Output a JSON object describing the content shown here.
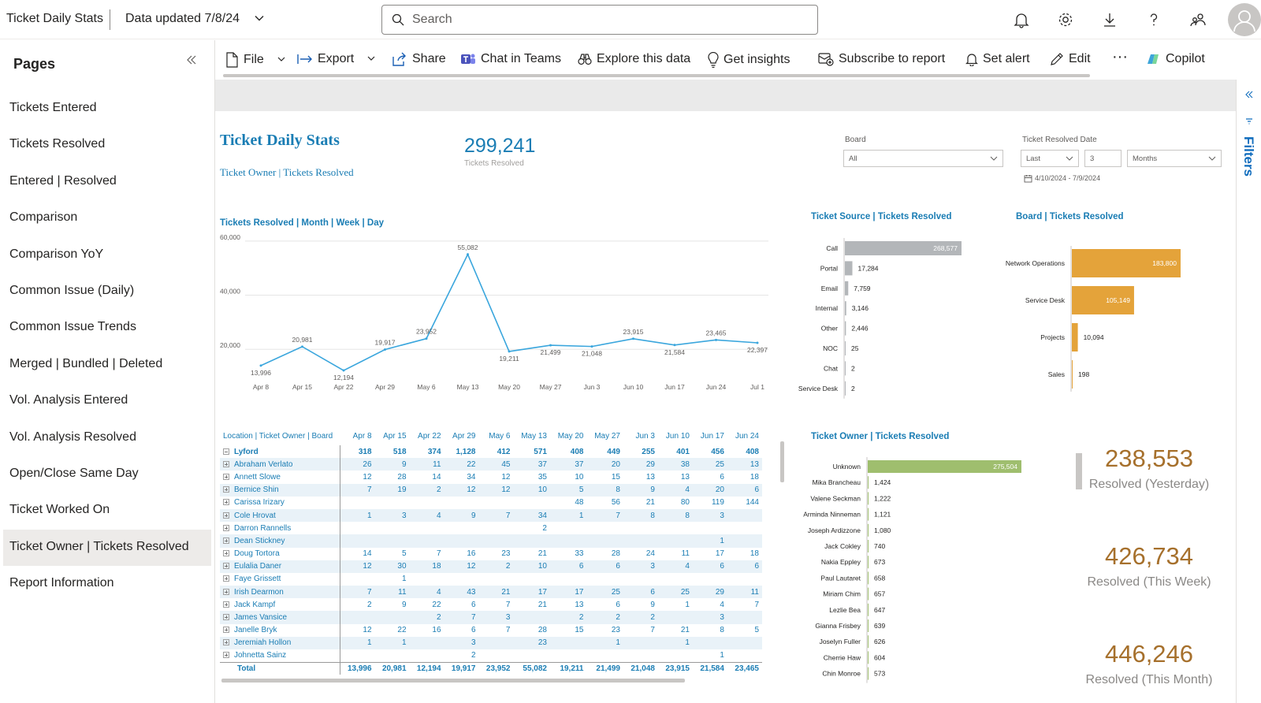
{
  "topbar": {
    "app_title": "Ticket Daily Stats",
    "data_updated": "Data updated 7/8/24",
    "search_placeholder": "Search"
  },
  "pages": {
    "heading": "Pages",
    "items": [
      "Tickets Entered",
      "Tickets Resolved",
      "Entered | Resolved",
      "Comparison",
      "Comparison YoY",
      "Common Issue (Daily)",
      "Common Issue Trends",
      "Merged | Bundled | Deleted",
      "Vol. Analysis Entered",
      "Vol. Analysis Resolved",
      "Open/Close Same Day",
      "Ticket Worked On",
      "Ticket Owner | Tickets Resolved",
      "Report Information"
    ],
    "active_index": 12
  },
  "toolbar": {
    "file": "File",
    "export": "Export",
    "share": "Share",
    "chat_teams": "Chat in Teams",
    "explore": "Explore this data",
    "insights": "Get insights",
    "subscribe": "Subscribe to report",
    "alert": "Set alert",
    "edit": "Edit",
    "more": "···",
    "copilot": "Copilot"
  },
  "filters_pane": {
    "label": "Filters"
  },
  "report": {
    "title": "Ticket Daily Stats",
    "subtitle": "Ticket Owner | Tickets Resolved",
    "total_value": "299,241",
    "total_label": "Tickets Resolved",
    "board_label": "Board",
    "board_value": "All",
    "date_label": "Ticket Resolved Date",
    "date_mode": "Last",
    "date_n": "3",
    "date_unit": "Months",
    "date_range": "4/10/2024 - 7/9/2024"
  },
  "chart_data": [
    {
      "type": "line",
      "title": "Tickets Resolved | Month | Week | Day",
      "x": [
        "Apr 8",
        "Apr 15",
        "Apr 22",
        "Apr 29",
        "May 6",
        "May 13",
        "May 20",
        "May 27",
        "Jun 3",
        "Jun 10",
        "Jun 17",
        "Jun 24",
        "Jul 1"
      ],
      "values": [
        13996,
        20981,
        12194,
        19917,
        23952,
        55082,
        19211,
        21499,
        21048,
        23915,
        21584,
        23465,
        22397
      ],
      "labels": [
        "13,996",
        "20,981",
        "12,194",
        "19,917",
        "23,952",
        "55,082",
        "19,211",
        "21,499",
        "21,048",
        "23,915",
        "21,584",
        "23,465",
        "22,397"
      ],
      "yticks": [
        "20,000",
        "40,000",
        "60,000"
      ],
      "ylim": [
        9000,
        62000
      ],
      "color": "#3aa6dd"
    },
    {
      "type": "bar",
      "title": "Ticket Source | Tickets Resolved",
      "categories": [
        "Call",
        "Portal",
        "Email",
        "Internal",
        "Other",
        "NOC",
        "Chat",
        "Service Desk"
      ],
      "values": [
        268577,
        17284,
        7759,
        3146,
        2446,
        25,
        2,
        2
      ],
      "labels": [
        "268,577",
        "17,284",
        "7,759",
        "3,146",
        "2,446",
        "25",
        "2",
        "2"
      ],
      "color": "#b3b6b9"
    },
    {
      "type": "bar",
      "title": "Board | Tickets Resolved",
      "categories": [
        "Network Operations",
        "Service Desk",
        "Projects",
        "Sales"
      ],
      "values": [
        183800,
        105149,
        10094,
        198
      ],
      "labels": [
        "183,800",
        "105,149",
        "10,094",
        "198"
      ],
      "color": "#e4a33a"
    },
    {
      "type": "bar",
      "title": "Ticket Owner | Tickets Resolved",
      "categories": [
        "Unknown",
        "Mika Brancheau",
        "Valene Seckman",
        "Arminda Ninneman",
        "Joseph Ardizzone",
        "Jack Cokley",
        "Nakia Eppley",
        "Paul Lautaret",
        "Miriam Chim",
        "Lezlie Bea",
        "Gianna Frisbey",
        "Joselyn Fuller",
        "Cherrie Haw",
        "Chin Monroe"
      ],
      "values": [
        275504,
        1424,
        1222,
        1121,
        1080,
        740,
        673,
        658,
        657,
        647,
        639,
        626,
        604,
        573
      ],
      "labels": [
        "275,504",
        "1,424",
        "1,222",
        "1,121",
        "1,080",
        "740",
        "673",
        "658",
        "657",
        "647",
        "639",
        "626",
        "604",
        "573"
      ],
      "color": "#9fbe6e"
    }
  ],
  "table": {
    "header": "Location | Ticket Owner | Board",
    "columns": [
      "Apr 8",
      "Apr 15",
      "Apr 22",
      "Apr 29",
      "May 6",
      "May 13",
      "May 20",
      "May 27",
      "Jun 3",
      "Jun 10",
      "Jun 17",
      "Jun 24"
    ],
    "group": {
      "name": "Lyford",
      "values": [
        "318",
        "518",
        "374",
        "1,128",
        "412",
        "571",
        "408",
        "449",
        "255",
        "401",
        "456",
        "408"
      ]
    },
    "rows": [
      {
        "name": "Abraham Verlato",
        "values": [
          "26",
          "9",
          "11",
          "22",
          "45",
          "37",
          "37",
          "20",
          "29",
          "38",
          "25",
          "13"
        ]
      },
      {
        "name": "Annett Slowe",
        "values": [
          "12",
          "28",
          "14",
          "34",
          "12",
          "35",
          "10",
          "15",
          "13",
          "13",
          "6",
          "18"
        ]
      },
      {
        "name": "Bernice Shin",
        "values": [
          "7",
          "19",
          "2",
          "12",
          "12",
          "10",
          "5",
          "8",
          "9",
          "4",
          "20",
          "6"
        ]
      },
      {
        "name": "Carissa Irizary",
        "values": [
          "",
          "",
          "",
          "",
          "",
          "",
          "48",
          "56",
          "21",
          "80",
          "119",
          "144"
        ]
      },
      {
        "name": "Cole Hrovat",
        "values": [
          "1",
          "3",
          "4",
          "9",
          "7",
          "34",
          "1",
          "7",
          "8",
          "8",
          "3",
          ""
        ]
      },
      {
        "name": "Darron Rannells",
        "values": [
          "",
          "",
          "",
          "",
          "",
          "2",
          "",
          "",
          "",
          "",
          "",
          ""
        ]
      },
      {
        "name": "Dean Stickney",
        "values": [
          "",
          "",
          "",
          "",
          "",
          "",
          "",
          "",
          "",
          "",
          "1",
          ""
        ]
      },
      {
        "name": "Doug Tortora",
        "values": [
          "14",
          "5",
          "7",
          "16",
          "23",
          "21",
          "33",
          "28",
          "24",
          "11",
          "17",
          "18"
        ]
      },
      {
        "name": "Eulalia Daner",
        "values": [
          "12",
          "30",
          "18",
          "12",
          "2",
          "10",
          "6",
          "6",
          "3",
          "4",
          "6",
          "6"
        ]
      },
      {
        "name": "Faye Grissett",
        "values": [
          "",
          "1",
          "",
          "",
          "",
          "",
          "",
          "",
          "",
          "",
          "",
          ""
        ]
      },
      {
        "name": "Irish Dearmon",
        "values": [
          "7",
          "11",
          "4",
          "43",
          "21",
          "17",
          "17",
          "25",
          "6",
          "25",
          "29",
          "11"
        ]
      },
      {
        "name": "Jack Kampf",
        "values": [
          "2",
          "9",
          "22",
          "6",
          "7",
          "21",
          "13",
          "6",
          "9",
          "1",
          "4",
          "7"
        ]
      },
      {
        "name": "James Vansice",
        "values": [
          "",
          "",
          "2",
          "7",
          "3",
          "",
          "2",
          "2",
          "2",
          "",
          "3",
          ""
        ]
      },
      {
        "name": "Janelle Bryk",
        "values": [
          "12",
          "22",
          "16",
          "6",
          "7",
          "28",
          "15",
          "23",
          "7",
          "21",
          "8",
          "5"
        ]
      },
      {
        "name": "Jeremiah Hollon",
        "values": [
          "1",
          "1",
          "",
          "3",
          "",
          "23",
          "",
          "1",
          "",
          "1",
          "",
          ""
        ]
      },
      {
        "name": "Johnetta Sainz",
        "values": [
          "",
          "",
          "",
          "2",
          "",
          "",
          "",
          "",
          "",
          "",
          "1",
          ""
        ]
      }
    ],
    "total": {
      "name": "Total",
      "values": [
        "13,996",
        "20,981",
        "12,194",
        "19,917",
        "23,952",
        "55,082",
        "19,211",
        "21,499",
        "21,048",
        "23,915",
        "21,584",
        "23,465"
      ]
    }
  },
  "kpis": [
    {
      "value": "238,553",
      "label": "Resolved (Yesterday)"
    },
    {
      "value": "426,734",
      "label": "Resolved (This Week)"
    },
    {
      "value": "446,246",
      "label": "Resolved (This Month)"
    }
  ]
}
